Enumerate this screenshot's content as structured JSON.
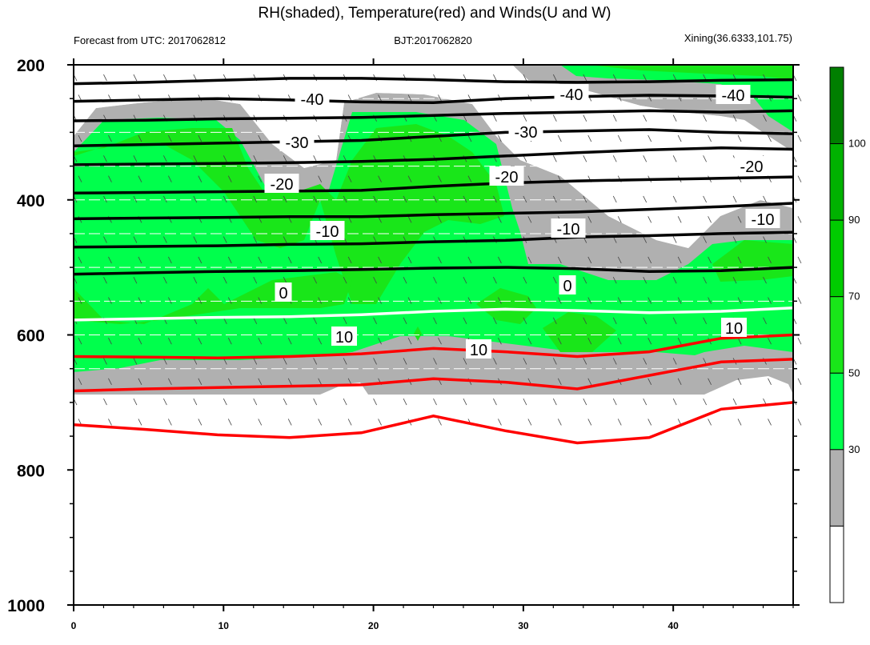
{
  "chart_data": {
    "type": "heatmap",
    "title": "RH(shaded), Temperature(red) and Winds(U and W)",
    "subtitle_left": "Forecast from UTC: 2017062812",
    "subtitle_center": "BJT:2017062820",
    "subtitle_right": "Xining(36.6333,101.75)",
    "xlim": [
      0,
      48
    ],
    "ylim": [
      1000,
      200
    ],
    "x_ticks": [
      "0",
      "10",
      "20",
      "30",
      "40"
    ],
    "x_tick_values": [
      0,
      10,
      20,
      30,
      40
    ],
    "y_ticks": [
      "200",
      "400",
      "600",
      "800",
      "1000"
    ],
    "y_tick_values": [
      200,
      400,
      600,
      800,
      1000
    ],
    "y_minor_ticks": [
      250,
      300,
      350,
      450,
      500,
      550,
      650,
      700,
      750,
      850,
      900,
      950
    ],
    "colorbar": {
      "levels": [
        "30",
        "50",
        "70",
        "90",
        "100"
      ],
      "level_values": [
        30,
        50,
        70,
        90,
        100
      ],
      "colors": [
        "#ffffff",
        "#b0b0b0",
        "#00ff4c",
        "#19e619",
        "#00cc00",
        "#00b200",
        "#007f00"
      ],
      "bounds": [
        0,
        30,
        50,
        60,
        70,
        80,
        90,
        100
      ]
    },
    "rh_field": {
      "description_levels": [
        30,
        50,
        60,
        70,
        80
      ],
      "bottom_level_hpa": 750
    },
    "temperature_contours_black": [
      {
        "label": "-40",
        "p": [
          228,
          226,
          223,
          220,
          220,
          222,
          225,
          226,
          225,
          223,
          222
        ]
      },
      {
        "label": "-40",
        "p": [
          254,
          252,
          250,
          252,
          255,
          256,
          250,
          247,
          245,
          246,
          248
        ]
      },
      {
        "label": "-30",
        "p": [
          283,
          282,
          280,
          279,
          278,
          275,
          272,
          270,
          268,
          270,
          268
        ]
      },
      {
        "label": "-30",
        "p": [
          320,
          318,
          316,
          314,
          312,
          306,
          300,
          298,
          296,
          300,
          302
        ]
      },
      {
        "label": "-20",
        "p": [
          348,
          347,
          346,
          345,
          343,
          340,
          335,
          330,
          326,
          323,
          325
        ]
      },
      {
        "label": "-20",
        "p": [
          390,
          389,
          388,
          387,
          386,
          380,
          375,
          372,
          370,
          368,
          366
        ]
      },
      {
        "label": "-10",
        "p": [
          428,
          427,
          426,
          425,
          425,
          422,
          420,
          418,
          414,
          410,
          405
        ]
      },
      {
        "label": "-10",
        "p": [
          470,
          469,
          468,
          466,
          465,
          462,
          460,
          455,
          453,
          450,
          448
        ]
      },
      {
        "label": "-10",
        "p": [
          510,
          508,
          506,
          505,
          503,
          501,
          500,
          502,
          506,
          505,
          500
        ]
      }
    ],
    "zero_isotherm": {
      "label": "0",
      "p": [
        578,
        576,
        574,
        573,
        570,
        565,
        562,
        564,
        567,
        565,
        560
      ]
    },
    "temperature_contours_red": [
      {
        "label": "10",
        "p": [
          632,
          633,
          634,
          632,
          628,
          620,
          625,
          632,
          625,
          605,
          600
        ]
      },
      {
        "label": "10",
        "p": [
          683,
          680,
          678,
          676,
          674,
          665,
          670,
          680,
          660,
          640,
          636
        ]
      },
      {
        "label": "",
        "p": [
          733,
          740,
          748,
          752,
          745,
          720,
          742,
          760,
          752,
          710,
          700
        ]
      }
    ],
    "contour_labels": [
      "-40",
      "-40",
      "-40",
      "-30",
      "-30",
      "-20",
      "-20",
      "-20",
      "-10",
      "-10",
      "-10",
      "0",
      "0",
      "10",
      "10",
      "10",
      "10"
    ]
  },
  "colors": {
    "gray": "#b0b0b0",
    "green_light": "#00ff4c",
    "green_mid": "#19e619",
    "red_line": "#ff0000",
    "white_line": "#ffffff"
  }
}
